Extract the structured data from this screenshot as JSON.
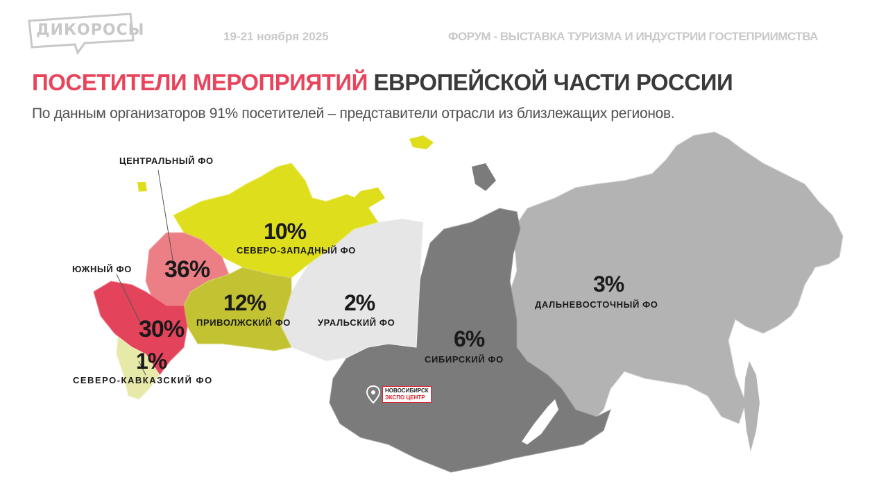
{
  "header": {
    "logo_text": "ДИКОРОСЫ",
    "date": "19-21 ноября 2025",
    "event": "ФОРУМ -  ВЫСТАВКА ТУРИЗМА И ИНДУСТРИИ ГОСТЕПРИИМСТВА"
  },
  "title": {
    "part_highlight": "ПОСЕТИТЕЛИ МЕРОПРИЯТИЙ",
    "part_rest": "ЕВРОПЕЙСКОЙ ЧАСТИ РОССИИ"
  },
  "subtitle": "По данным организаторов 91% посетителей –  представители отрасли из близлежащих регионов.",
  "regions": [
    {
      "name": "ЦЕНТРАЛЬНЫЙ ФО",
      "share": "36%",
      "share_value": 36,
      "color": "#ec7e86"
    },
    {
      "name": "СЕВЕРО-ЗАПАДНЫЙ ФО",
      "share": "10%",
      "share_value": 10,
      "color": "#dede1c"
    },
    {
      "name": "ЮЖНЫЙ ФО",
      "share": "30%",
      "share_value": 30,
      "color": "#e3435b"
    },
    {
      "name": "ПРИВОЛЖСКИЙ ФО",
      "share": "12%",
      "share_value": 12,
      "color": "#c3c232"
    },
    {
      "name": "УРАЛЬСКИЙ ФО",
      "share": "2%",
      "share_value": 2,
      "color": "#e6e6e6"
    },
    {
      "name": "СИБИРСКИЙ ФО",
      "share": "6%",
      "share_value": 6,
      "color": "#7b7b7b"
    },
    {
      "name": "ДАЛЬНЕВОСТОЧНЫЙ ФО",
      "share": "3%",
      "share_value": 3,
      "color": "#b3b3b3"
    },
    {
      "name": "СЕВЕРО-КАВКАЗСКИЙ  ФО",
      "share": "1%",
      "share_value": 1,
      "color": "#e6e9a8"
    }
  ],
  "venue": {
    "line1": "НОВОСИБИРСК",
    "line2": "ЭКСПО ЦЕНТР",
    "icon": "map-pin-icon"
  }
}
